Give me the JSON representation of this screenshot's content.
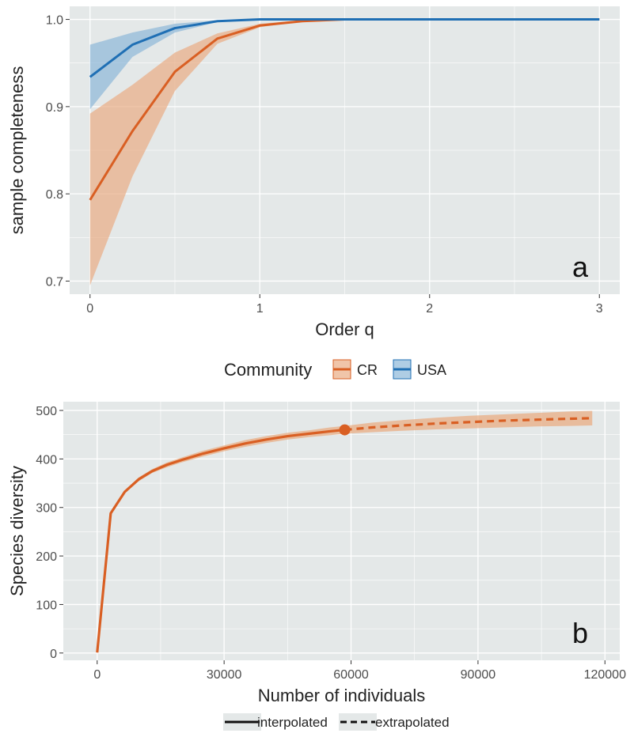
{
  "colors": {
    "panel_bg": "#e4e8e8",
    "grid": "#ffffff",
    "cr": "#d95f23",
    "cr_band": "#e9ad84",
    "usa": "#1f6fb4",
    "usa_band": "#8db8d8",
    "text_dark": "#222222",
    "tick_text": "#4d4d4d"
  },
  "chart_data": [
    {
      "type": "line",
      "panel_label": "a",
      "title": "",
      "xlabel": "Order q",
      "ylabel": "sample completeness",
      "xlim": [
        -0.12,
        3.12
      ],
      "ylim": [
        0.685,
        1.015
      ],
      "x_ticks": [
        0,
        1,
        2,
        3
      ],
      "x_tick_labels": [
        "0",
        "1",
        "2",
        "3"
      ],
      "y_ticks": [
        0.7,
        0.8,
        0.9,
        1.0
      ],
      "y_tick_labels": [
        "0.7",
        "0.8",
        "0.9",
        "1.0"
      ],
      "grid": true,
      "legend": {
        "title": "Community",
        "position": "bottom",
        "entries": [
          {
            "label": "CR",
            "series": "CR"
          },
          {
            "label": "USA",
            "series": "USA"
          }
        ]
      },
      "x": [
        0,
        0.25,
        0.5,
        0.75,
        1.0,
        1.25,
        1.5,
        1.75,
        2.0,
        2.25,
        2.5,
        2.75,
        3.0
      ],
      "series": [
        {
          "name": "CR",
          "values": [
            0.793,
            0.872,
            0.94,
            0.978,
            0.993,
            0.998,
            1.0,
            1.0,
            1.0,
            1.0,
            1.0,
            1.0,
            1.0
          ],
          "lower": [
            0.695,
            0.82,
            0.918,
            0.972,
            0.991,
            0.998,
            1.0,
            1.0,
            1.0,
            1.0,
            1.0,
            1.0,
            1.0
          ],
          "upper": [
            0.892,
            0.925,
            0.962,
            0.984,
            0.995,
            0.999,
            1.0,
            1.0,
            1.0,
            1.0,
            1.0,
            1.0,
            1.0
          ]
        },
        {
          "name": "USA",
          "values": [
            0.934,
            0.971,
            0.99,
            0.998,
            1.0,
            1.0,
            1.0,
            1.0,
            1.0,
            1.0,
            1.0,
            1.0,
            1.0
          ],
          "lower": [
            0.897,
            0.957,
            0.985,
            0.997,
            1.0,
            1.0,
            1.0,
            1.0,
            1.0,
            1.0,
            1.0,
            1.0,
            1.0
          ],
          "upper": [
            0.971,
            0.985,
            0.995,
            0.999,
            1.0,
            1.0,
            1.0,
            1.0,
            1.0,
            1.0,
            1.0,
            1.0,
            1.0
          ]
        }
      ]
    },
    {
      "type": "line",
      "panel_label": "b",
      "title": "",
      "xlabel": "Number of individuals",
      "ylabel": "Species diversity",
      "xlim": [
        -8000,
        123500
      ],
      "ylim": [
        -15,
        518
      ],
      "x_ticks": [
        0,
        30000,
        60000,
        90000,
        120000
      ],
      "x_tick_labels": [
        "0",
        "30000",
        "60000",
        "90000",
        "120000"
      ],
      "y_ticks": [
        0,
        100,
        200,
        300,
        400,
        500
      ],
      "y_tick_labels": [
        "0",
        "100",
        "200",
        "300",
        "400",
        "500"
      ],
      "grid": true,
      "legend": {
        "position": "bottom",
        "entries": [
          {
            "label": "interpolated",
            "linetype": "solid"
          },
          {
            "label": "extrapolated",
            "linetype": "dashed"
          }
        ]
      },
      "reference_point": {
        "x": 58500,
        "y": 460
      },
      "series": [
        {
          "name": "CR",
          "method": "interpolated",
          "x": [
            1,
            3200,
            6500,
            9800,
            13000,
            16500,
            20000,
            25000,
            30000,
            35000,
            40000,
            45000,
            50000,
            55000,
            58500
          ],
          "values": [
            1,
            288,
            332,
            358,
            375,
            388,
            398,
            411,
            422,
            432,
            440,
            447,
            452,
            457,
            460
          ],
          "lower": [
            1,
            286,
            329,
            354,
            371,
            383,
            393,
            405,
            416,
            425,
            433,
            440,
            445,
            449,
            452
          ],
          "upper": [
            1,
            290,
            335,
            362,
            379,
            393,
            403,
            417,
            428,
            439,
            447,
            454,
            459,
            465,
            468
          ]
        },
        {
          "name": "CR",
          "method": "extrapolated",
          "x": [
            58500,
            65000,
            72000,
            80000,
            88000,
            96000,
            104000,
            112000,
            117000
          ],
          "values": [
            460,
            465,
            469,
            473,
            476,
            479,
            481,
            483,
            484
          ],
          "lower": [
            452,
            455,
            458,
            461,
            463,
            465,
            467,
            468,
            469
          ],
          "upper": [
            468,
            475,
            480,
            485,
            489,
            492,
            495,
            498,
            499
          ]
        }
      ]
    }
  ]
}
